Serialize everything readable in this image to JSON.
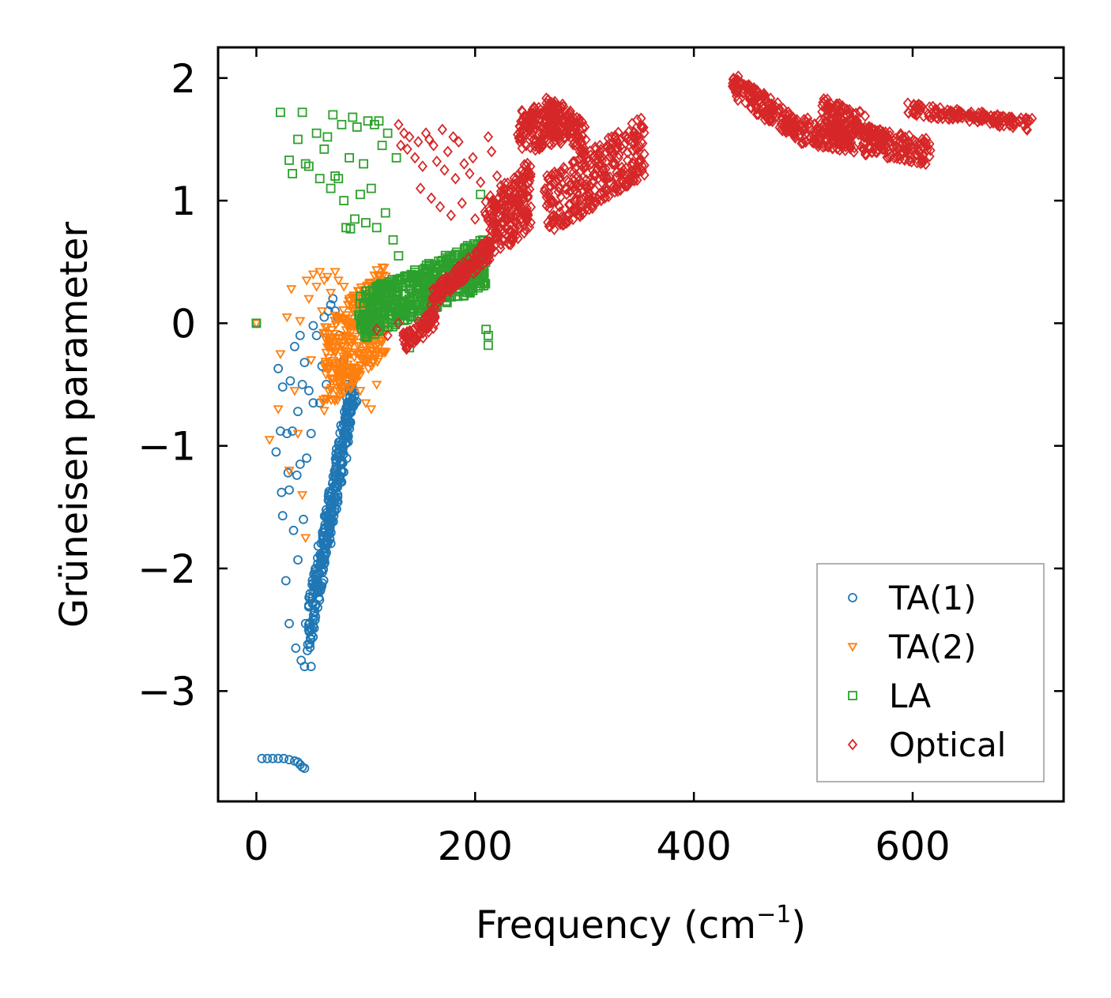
{
  "chart_data": {
    "type": "scatter",
    "title": "",
    "xlabel": "Frequency (cm",
    "xlabel_sup": "−1",
    "xlabel_close": ")",
    "ylabel": "Grüneisen parameter",
    "xlim": [
      -35,
      738
    ],
    "ylim": [
      -3.9,
      2.25
    ],
    "xticks": [
      0,
      200,
      400,
      600
    ],
    "xtick_labels": [
      "0",
      "200",
      "400",
      "600"
    ],
    "yticks": [
      2,
      1,
      0,
      -1,
      -2,
      -3
    ],
    "ytick_labels": [
      "2",
      "1",
      "0",
      "−1",
      "−2",
      "−3"
    ],
    "legend_position": "lower-right",
    "series": [
      {
        "name": "TA(1)",
        "marker": "circle",
        "color": "#1f77b4",
        "points": [
          [
            0,
            0
          ],
          [
            5,
            -3.55
          ],
          [
            10,
            -3.55
          ],
          [
            15,
            -3.55
          ],
          [
            20,
            -3.55
          ],
          [
            25,
            -3.55
          ],
          [
            30,
            -3.56
          ],
          [
            35,
            -3.57
          ],
          [
            38,
            -3.58
          ],
          [
            40,
            -3.6
          ],
          [
            42,
            -3.62
          ],
          [
            44,
            -3.63
          ],
          [
            18,
            -1.05
          ],
          [
            20,
            -0.37
          ],
          [
            22,
            -0.88
          ],
          [
            23,
            -1.38
          ],
          [
            24,
            -0.52
          ],
          [
            24,
            -1.57
          ],
          [
            27,
            -2.1
          ],
          [
            28,
            -0.9
          ],
          [
            29,
            -1.22
          ],
          [
            30,
            -1.36
          ],
          [
            30,
            -2.45
          ],
          [
            31,
            -0.47
          ],
          [
            33,
            -0.88
          ],
          [
            34,
            -1.69
          ],
          [
            35,
            -0.19
          ],
          [
            36,
            -2.65
          ],
          [
            37,
            -1.24
          ],
          [
            38,
            -1.93
          ],
          [
            38,
            -0.72
          ],
          [
            40,
            -0.1
          ],
          [
            40,
            -1.15
          ],
          [
            41,
            -2.75
          ],
          [
            42,
            -0.5
          ],
          [
            43,
            -1.6
          ],
          [
            44,
            -2.8
          ],
          [
            44,
            -0.32
          ],
          [
            45,
            -2.45
          ],
          [
            46,
            -1.1
          ],
          [
            47,
            -2.62
          ],
          [
            48,
            -0.55
          ],
          [
            48,
            -2.3
          ],
          [
            50,
            -2.8
          ],
          [
            50,
            -0.9
          ],
          [
            52,
            -0.02
          ],
          [
            52,
            -0.65
          ],
          [
            55,
            -0.1
          ],
          [
            58,
            -0.65
          ],
          [
            60,
            -0.35
          ],
          [
            62,
            0.05
          ],
          [
            64,
            -0.5
          ],
          [
            66,
            0.1
          ],
          [
            68,
            0.15
          ],
          [
            70,
            0.2
          ],
          [
            72,
            0.1
          ],
          [
            74,
            0.05
          ],
          [
            76,
            -0.1
          ],
          [
            80,
            -0.3
          ],
          [
            82,
            -0.4
          ],
          [
            85,
            -0.55
          ]
        ],
        "band": {
          "from": [
            48,
            -2.5
          ],
          "to": [
            90,
            -0.45
          ],
          "half_width": 0.2,
          "count": 320,
          "seed": 11
        }
      },
      {
        "name": "TA(2)",
        "marker": "triangle-down",
        "color": "#ff7f0e",
        "points": [
          [
            0,
            0
          ],
          [
            12,
            -0.95
          ],
          [
            20,
            -0.7
          ],
          [
            22,
            -0.25
          ],
          [
            28,
            0.05
          ],
          [
            30,
            -1.2
          ],
          [
            32,
            0.28
          ],
          [
            35,
            -0.55
          ],
          [
            38,
            -0.9
          ],
          [
            40,
            0.02
          ],
          [
            42,
            -1.4
          ],
          [
            45,
            -1.75
          ],
          [
            46,
            0.35
          ],
          [
            48,
            0.2
          ],
          [
            50,
            -0.3
          ],
          [
            52,
            0.4
          ],
          [
            55,
            0.3
          ],
          [
            58,
            0.42
          ],
          [
            60,
            0.1
          ],
          [
            62,
            0.35
          ],
          [
            65,
            0.38
          ],
          [
            68,
            0.25
          ],
          [
            72,
            0.42
          ],
          [
            75,
            0.35
          ],
          [
            80,
            0.3
          ],
          [
            85,
            0.2
          ],
          [
            90,
            0.15
          ],
          [
            95,
            -0.55
          ],
          [
            100,
            -0.65
          ],
          [
            105,
            -0.7
          ],
          [
            110,
            -0.5
          ]
        ],
        "band": {
          "from": [
            62,
            -0.4
          ],
          "to": [
            118,
            0.15
          ],
          "half_width": 0.38,
          "count": 320,
          "seed": 23
        }
      },
      {
        "name": "LA",
        "marker": "square",
        "color": "#2ca02c",
        "points": [
          [
            0,
            0
          ],
          [
            22,
            1.72
          ],
          [
            30,
            1.33
          ],
          [
            33,
            1.22
          ],
          [
            38,
            1.5
          ],
          [
            42,
            1.72
          ],
          [
            45,
            1.3
          ],
          [
            48,
            1.28
          ],
          [
            55,
            1.55
          ],
          [
            58,
            1.18
          ],
          [
            62,
            1.42
          ],
          [
            65,
            1.52
          ],
          [
            68,
            1.1
          ],
          [
            70,
            1.7
          ],
          [
            72,
            1.2
          ],
          [
            75,
            1.18
          ],
          [
            78,
            1.62
          ],
          [
            80,
            1.0
          ],
          [
            82,
            0.78
          ],
          [
            85,
            1.35
          ],
          [
            86,
            0.77
          ],
          [
            88,
            1.68
          ],
          [
            90,
            0.85
          ],
          [
            92,
            1.6
          ],
          [
            95,
            1.05
          ],
          [
            98,
            1.3
          ],
          [
            100,
            0.82
          ],
          [
            102,
            1.65
          ],
          [
            105,
            1.1
          ],
          [
            108,
            1.62
          ],
          [
            110,
            0.78
          ],
          [
            112,
            1.65
          ],
          [
            115,
            1.45
          ],
          [
            118,
            0.9
          ],
          [
            120,
            1.55
          ],
          [
            125,
            0.68
          ],
          [
            128,
            1.35
          ],
          [
            130,
            0.55
          ],
          [
            140,
            -0.2
          ],
          [
            150,
            0.1
          ],
          [
            160,
            0.2
          ],
          [
            205,
            1.05
          ],
          [
            210,
            -0.05
          ],
          [
            212,
            -0.1
          ],
          [
            212,
            -0.18
          ]
        ],
        "band": {
          "from": [
            95,
            0.05
          ],
          "to": [
            210,
            0.5
          ],
          "half_width": 0.2,
          "count": 520,
          "seed": 37
        }
      },
      {
        "name": "Optical",
        "marker": "diamond",
        "color": "#d62728",
        "points": [
          [
            130,
            1.62
          ],
          [
            132,
            1.45
          ],
          [
            135,
            1.55
          ],
          [
            138,
            1.42
          ],
          [
            140,
            1.52
          ],
          [
            145,
            1.35
          ],
          [
            148,
            1.48
          ],
          [
            150,
            1.1
          ],
          [
            152,
            1.28
          ],
          [
            155,
            1.55
          ],
          [
            158,
            1.5
          ],
          [
            160,
            1.02
          ],
          [
            162,
            1.45
          ],
          [
            165,
            1.32
          ],
          [
            168,
            0.95
          ],
          [
            170,
            1.58
          ],
          [
            172,
            1.25
          ],
          [
            175,
            1.4
          ],
          [
            178,
            0.88
          ],
          [
            180,
            1.52
          ],
          [
            182,
            1.18
          ],
          [
            185,
            1.48
          ],
          [
            188,
            0.98
          ],
          [
            190,
            1.3
          ],
          [
            195,
            1.22
          ],
          [
            198,
            1.35
          ],
          [
            200,
            0.85
          ],
          [
            205,
            1.15
          ],
          [
            212,
            1.52
          ],
          [
            215,
            1.4
          ],
          [
            220,
            1.2
          ],
          [
            110,
            -0.05
          ],
          [
            120,
            -0.1
          ],
          [
            130,
            0.0
          ]
        ],
        "band": [
          {
            "from": [
              210,
              0.75
            ],
            "to": [
              250,
              1.05
            ],
            "half_width": 0.28,
            "count": 220,
            "seed": 41
          },
          {
            "from": [
              240,
              1.55
            ],
            "to": [
              280,
              1.65
            ],
            "half_width": 0.18,
            "count": 140,
            "seed": 42
          },
          {
            "from": [
              265,
              0.95
            ],
            "to": [
              355,
              1.45
            ],
            "half_width": 0.25,
            "count": 320,
            "seed": 43
          },
          {
            "from": [
              265,
              1.7
            ],
            "to": [
              300,
              1.5
            ],
            "half_width": 0.15,
            "count": 120,
            "seed": 44
          },
          {
            "from": [
              435,
              1.95
            ],
            "to": [
              495,
              1.58
            ],
            "half_width": 0.1,
            "count": 160,
            "seed": 45
          },
          {
            "from": [
              495,
              1.58
            ],
            "to": [
              615,
              1.4
            ],
            "half_width": 0.11,
            "count": 260,
            "seed": 46
          },
          {
            "from": [
              515,
              1.75
            ],
            "to": [
              555,
              1.62
            ],
            "half_width": 0.1,
            "count": 90,
            "seed": 47
          },
          {
            "from": [
              595,
              1.75
            ],
            "to": [
              710,
              1.62
            ],
            "half_width": 0.05,
            "count": 160,
            "seed": 48
          },
          {
            "from": [
              560,
              1.55
            ],
            "to": [
              575,
              1.5
            ],
            "half_width": 0.06,
            "count": 40,
            "seed": 49
          },
          {
            "from": [
              160,
              0.2
            ],
            "to": [
              215,
              0.62
            ],
            "half_width": 0.08,
            "count": 160,
            "seed": 50
          },
          {
            "from": [
              135,
              -0.15
            ],
            "to": [
              165,
              0.05
            ],
            "half_width": 0.08,
            "count": 80,
            "seed": 51
          }
        ]
      }
    ]
  }
}
